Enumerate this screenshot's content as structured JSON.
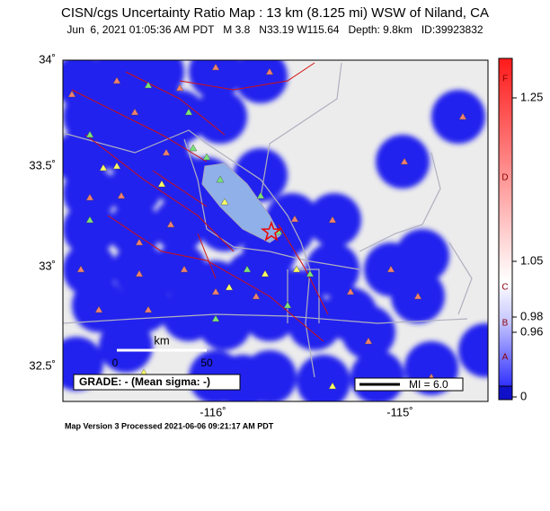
{
  "header": {
    "title": "CISN/cgs Uncertainty Ratio Map : 13 km (8.125 mi) WSW of Niland, CA",
    "subtitle": "Jun  6, 2021 01:05:36 AM PDT   M 3.8   N33.19 W115.64   Depth: 9.8km   ID:39923832"
  },
  "map": {
    "lat_labels": [
      "34˚",
      "33.5˚",
      "33˚",
      "32.5˚"
    ],
    "lon_labels": [
      "-116˚",
      "-115˚"
    ],
    "scale": {
      "unit": "km",
      "start": "0",
      "end": "50"
    },
    "grade": "GRADE: - (Mean sigma: -)",
    "mmi_legend": "MI = 6.0"
  },
  "colorbar": {
    "ticks": [
      1.25,
      1.05,
      0.98,
      0.96,
      0
    ],
    "grades": [
      "F",
      "D",
      "C",
      "B",
      "A"
    ]
  },
  "footer": "Map Version 3 Processed 2021-06-06 09:21:17 AM PDT"
}
